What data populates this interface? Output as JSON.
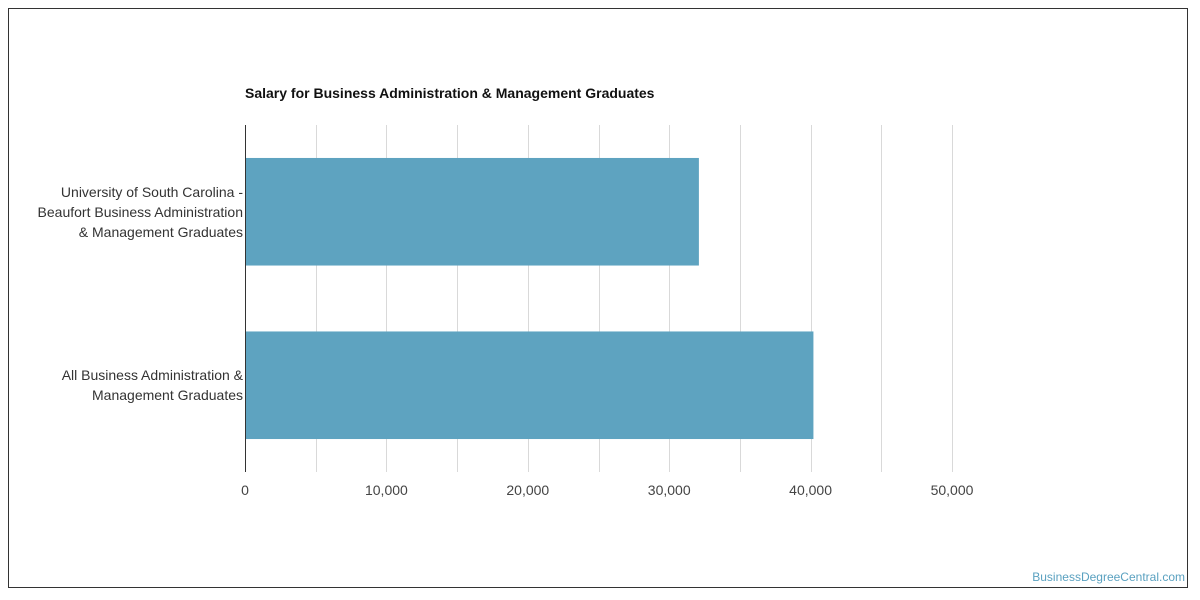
{
  "chart_data": {
    "type": "bar",
    "orientation": "horizontal",
    "title": "Salary for Business Administration & Management Graduates",
    "categories": [
      [
        "University of South Carolina -",
        "Beaufort Business Administration",
        "& Management Graduates"
      ],
      [
        "All Business Administration &",
        "Management Graduates"
      ]
    ],
    "values": [
      32100,
      40200
    ],
    "xlim": [
      0,
      50000
    ],
    "xticks": [
      0,
      10000,
      20000,
      30000,
      40000,
      50000
    ],
    "xtick_labels": [
      "0",
      "10,000",
      "20,000",
      "30,000",
      "40,000",
      "50,000"
    ],
    "grid": true,
    "bar_color": "#5ea3c0"
  },
  "footer": {
    "credit": "BusinessDegreeCentral.com"
  }
}
